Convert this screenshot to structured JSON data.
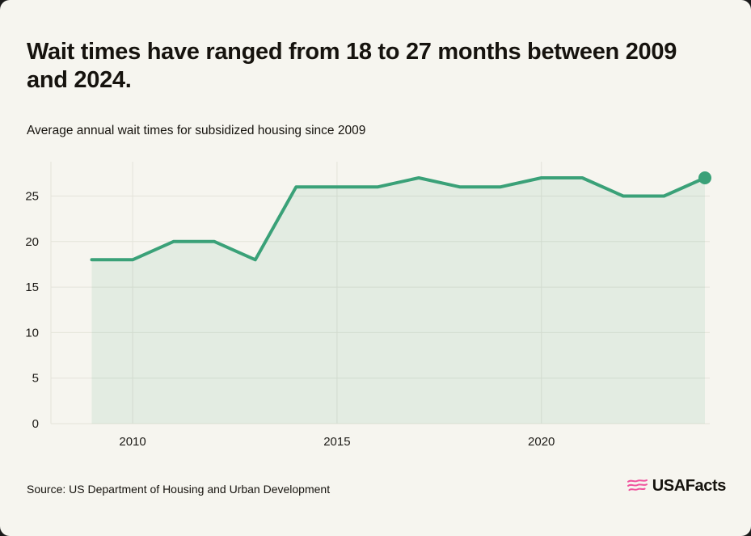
{
  "header": {
    "title": "Wait times have ranged from 18 to 27 months between 2009 and 2024.",
    "subtitle": "Average annual wait times for subsidized housing since 2009"
  },
  "chart_data": {
    "type": "area",
    "title": "Average annual wait times for subsidized housing since 2009",
    "x": [
      2009,
      2010,
      2011,
      2012,
      2013,
      2014,
      2015,
      2016,
      2017,
      2018,
      2019,
      2020,
      2021,
      2022,
      2023,
      2024
    ],
    "values": [
      18,
      18,
      20,
      20,
      18,
      26,
      26,
      26,
      27,
      26,
      26,
      27,
      27,
      25,
      25,
      27
    ],
    "xlabel": "",
    "ylabel": "",
    "ylim": [
      0,
      28.8
    ],
    "yticks": [
      0,
      5,
      10,
      15,
      20,
      25
    ],
    "xticks": [
      2010,
      2015,
      2020
    ],
    "grid": true,
    "legend": false,
    "line_color": "#3aa178",
    "fill_color": "rgba(58,161,120,0.10)",
    "end_dot": true
  },
  "footer": {
    "source": "Source: US Department of Housing and Urban Development",
    "brand": "USAFacts"
  },
  "colors": {
    "card_background": "#f6f5ef",
    "accent_green": "#3aa178",
    "brand_pink": "#f0549e",
    "text": "#16130e",
    "gridline": "#e4e3da"
  }
}
